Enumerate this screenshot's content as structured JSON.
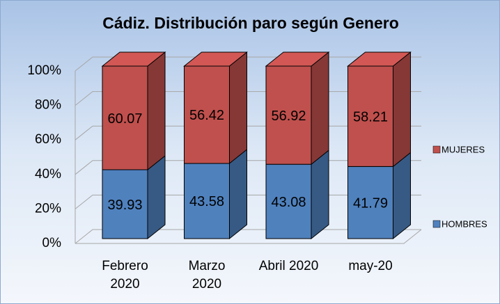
{
  "chart_data": {
    "type": "bar3d_stacked_percent",
    "title": "Cádiz. Distribución paro según Genero",
    "categories": [
      "Febrero 2020",
      "Marzo 2020",
      "Abril 2020",
      "may-20"
    ],
    "series": [
      {
        "name": "HOMBRES",
        "color": "#4f81bd",
        "values": [
          39.93,
          43.58,
          43.08,
          41.79
        ]
      },
      {
        "name": "MUJERES",
        "color": "#c0504d",
        "values": [
          60.07,
          56.42,
          56.92,
          58.21
        ]
      }
    ],
    "ylim": [
      0,
      100
    ],
    "yticks": [
      {
        "value": 0,
        "label": "0%"
      },
      {
        "value": 20,
        "label": "20%"
      },
      {
        "value": 40,
        "label": "40%"
      },
      {
        "value": 60,
        "label": "60%"
      },
      {
        "value": 80,
        "label": "80%"
      },
      {
        "value": 100,
        "label": "100%"
      }
    ],
    "grid": true,
    "legend": "right"
  }
}
